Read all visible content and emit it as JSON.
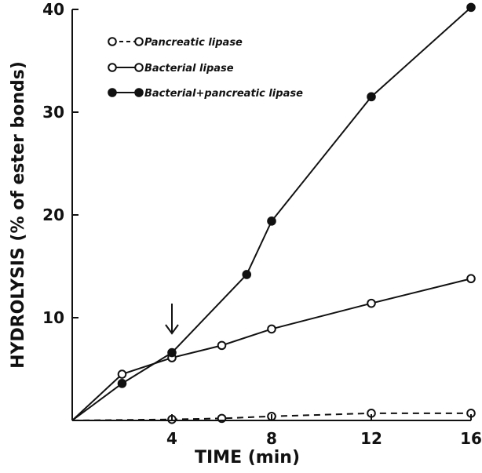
{
  "chart_data": {
    "type": "line",
    "title": "",
    "xlabel": "TIME (min)",
    "ylabel": "HYDROLYSIS (% of ester bonds)",
    "xlim": [
      0,
      16
    ],
    "ylim": [
      0,
      40
    ],
    "x_ticks": [
      4,
      8,
      12,
      16
    ],
    "y_ticks": [
      10,
      20,
      30,
      40
    ],
    "grid": false,
    "legend_position": "top-left",
    "series": [
      {
        "name": "Pancreatic lipase",
        "marker": "open-circle",
        "line_style": "dashed",
        "x": [
          0,
          4,
          6,
          8,
          12,
          16
        ],
        "y": [
          0,
          0.1,
          0.2,
          0.4,
          0.7,
          0.7
        ]
      },
      {
        "name": "Bacterial lipase",
        "marker": "open-circle",
        "line_style": "solid",
        "x": [
          0,
          2,
          4,
          6,
          8,
          12,
          16
        ],
        "y": [
          0,
          4.5,
          6.1,
          7.3,
          8.9,
          11.4,
          13.8
        ]
      },
      {
        "name": "Bacterial+pancreatic lipase",
        "marker": "filled-circle",
        "line_style": "solid",
        "x": [
          0,
          2,
          4,
          7,
          8,
          12,
          16
        ],
        "y": [
          0,
          3.6,
          6.6,
          14.2,
          19.4,
          31.5,
          40.2
        ]
      }
    ],
    "annotations": [
      {
        "type": "arrow-down",
        "x": 4,
        "text": ""
      }
    ]
  }
}
